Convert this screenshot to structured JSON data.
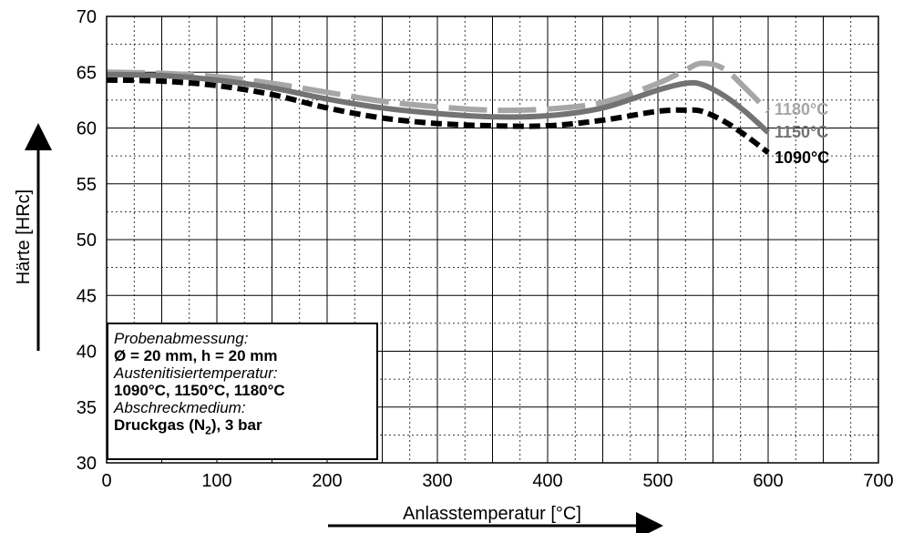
{
  "chart_data": {
    "type": "line",
    "xlabel": "Anlasstemperatur [°C]",
    "ylabel": "Härte [HRc]",
    "xlim": [
      0,
      700
    ],
    "ylim": [
      30,
      70
    ],
    "x_ticks": [
      "0",
      "100",
      "200",
      "300",
      "400",
      "500",
      "600",
      "700"
    ],
    "y_ticks": [
      "30",
      "35",
      "40",
      "45",
      "50",
      "55",
      "60",
      "65",
      "70"
    ],
    "grid": true,
    "series": [
      {
        "name": "1180°C",
        "color": "#a6a6a6",
        "style": "long-dash",
        "x": [
          0,
          50,
          100,
          150,
          200,
          250,
          300,
          350,
          400,
          450,
          500,
          525,
          540,
          560,
          580,
          600
        ],
        "y": [
          65.0,
          64.9,
          64.6,
          64.0,
          63.2,
          62.4,
          61.9,
          61.6,
          61.7,
          62.3,
          64.0,
          65.2,
          65.8,
          65.3,
          63.5,
          61.5
        ]
      },
      {
        "name": "1150°C",
        "color": "#737373",
        "style": "solid",
        "x": [
          0,
          50,
          100,
          150,
          200,
          250,
          300,
          350,
          400,
          450,
          500,
          525,
          540,
          560,
          580,
          600
        ],
        "y": [
          64.8,
          64.7,
          64.3,
          63.6,
          62.6,
          61.8,
          61.3,
          61.0,
          61.1,
          61.8,
          63.4,
          64.0,
          63.9,
          62.9,
          61.4,
          59.6
        ]
      },
      {
        "name": "1090°C",
        "color": "#000000",
        "style": "short-dash",
        "x": [
          0,
          50,
          100,
          150,
          200,
          250,
          300,
          350,
          400,
          450,
          500,
          525,
          540,
          560,
          580,
          600
        ],
        "y": [
          64.3,
          64.2,
          63.8,
          63.0,
          61.8,
          60.9,
          60.4,
          60.2,
          60.2,
          60.7,
          61.5,
          61.6,
          61.5,
          60.6,
          59.3,
          57.8
        ]
      }
    ],
    "legend_box": {
      "line1": "Probenabmessung:",
      "line2": "Ø = 20 mm, h = 20 mm",
      "line3": "Austenitisiertemperatur:",
      "line4": "1090°C, 1150°C, 1180°C",
      "line5": "Abschreckmedium:",
      "line6_main": "Druckgas (N",
      "line6_sub": "2",
      "line6_end": "), 3 bar"
    }
  }
}
